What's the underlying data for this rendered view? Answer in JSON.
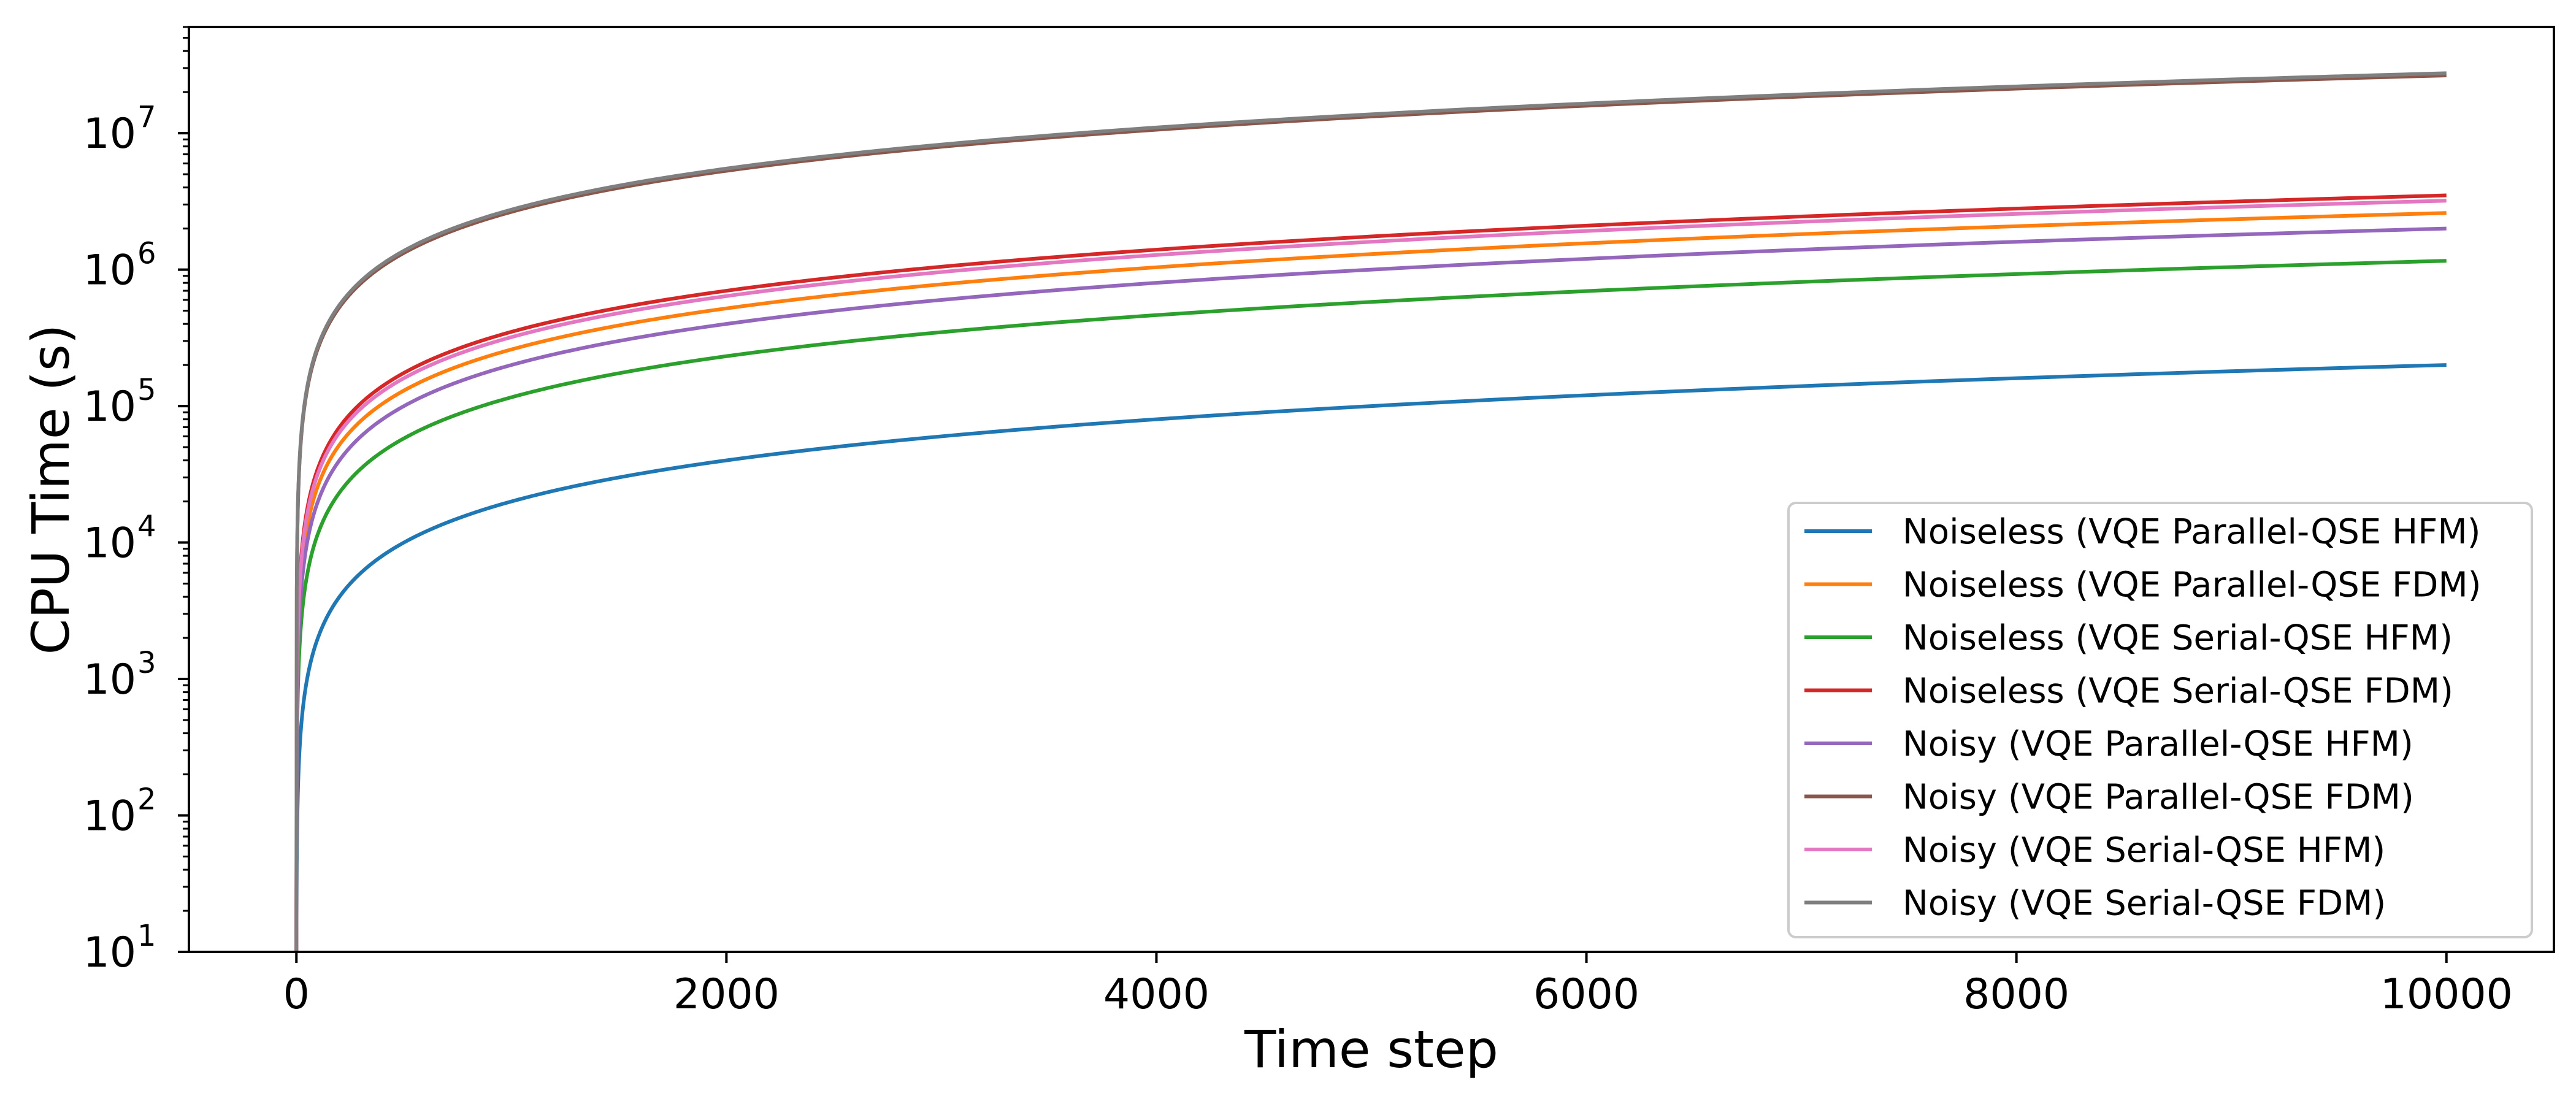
{
  "chart_data": {
    "type": "line",
    "title": "",
    "xlabel": "Time step",
    "ylabel": "CPU Time (s)",
    "xlim": [
      -500,
      10500
    ],
    "ylim": [
      10,
      60000000
    ],
    "yscale": "log",
    "x_ticks": [
      {
        "value": 0,
        "label": "0"
      },
      {
        "value": 2000,
        "label": "2000"
      },
      {
        "value": 4000,
        "label": "4000"
      },
      {
        "value": 6000,
        "label": "6000"
      },
      {
        "value": 8000,
        "label": "8000"
      },
      {
        "value": 10000,
        "label": "10000"
      }
    ],
    "y_ticks": [
      {
        "value": 10,
        "base": "10",
        "exp": "1"
      },
      {
        "value": 100,
        "base": "10",
        "exp": "2"
      },
      {
        "value": 1000,
        "base": "10",
        "exp": "3"
      },
      {
        "value": 10000,
        "base": "10",
        "exp": "4"
      },
      {
        "value": 100000,
        "base": "10",
        "exp": "5"
      },
      {
        "value": 1000000,
        "base": "10",
        "exp": "6"
      },
      {
        "value": 10000000,
        "base": "10",
        "exp": "7"
      }
    ],
    "grid": false,
    "legend": "lower-right",
    "x": [
      0,
      100,
      500,
      1000,
      2000,
      4000,
      6000,
      8000,
      10000
    ],
    "series": [
      {
        "name": "Noiseless (VQE Parallel-QSE HFM)",
        "color": "#1f77b4",
        "values": [
          10,
          2000,
          10000,
          20000,
          40000,
          80000,
          120000,
          160000,
          200000
        ]
      },
      {
        "name": "Noiseless (VQE Parallel-QSE FDM)",
        "color": "#ff7f0e",
        "values": [
          10,
          26000,
          130000,
          260000,
          520000,
          1040000,
          1560000,
          2080000,
          2600000
        ]
      },
      {
        "name": "Noiseless (VQE Serial-QSE HFM)",
        "color": "#2ca02c",
        "values": [
          10,
          11600,
          58000,
          116000,
          232000,
          464000,
          696000,
          928000,
          1160000
        ]
      },
      {
        "name": "Noiseless (VQE Serial-QSE FDM)",
        "color": "#d62728",
        "values": [
          10,
          35000,
          175000,
          350000,
          700000,
          1400000,
          2100000,
          2800000,
          3500000
        ]
      },
      {
        "name": "Noisy (VQE Parallel-QSE HFM)",
        "color": "#9467bd",
        "values": [
          10,
          20000,
          100000,
          200000,
          400000,
          800000,
          1200000,
          1600000,
          2000000
        ]
      },
      {
        "name": "Noisy (VQE Parallel-QSE FDM)",
        "color": "#8c564b",
        "values": [
          10,
          265000,
          1325000,
          2650000,
          5300000,
          10600000,
          15900000,
          21200000,
          26500000
        ]
      },
      {
        "name": "Noisy (VQE Serial-QSE HFM)",
        "color": "#e377c2",
        "values": [
          10,
          32000,
          160000,
          320000,
          640000,
          1280000,
          1920000,
          2560000,
          3200000
        ]
      },
      {
        "name": "Noisy (VQE Serial-QSE FDM)",
        "color": "#7f7f7f",
        "values": [
          10,
          275000,
          1375000,
          2750000,
          5500000,
          11000000,
          16500000,
          22000000,
          27500000
        ]
      }
    ]
  }
}
